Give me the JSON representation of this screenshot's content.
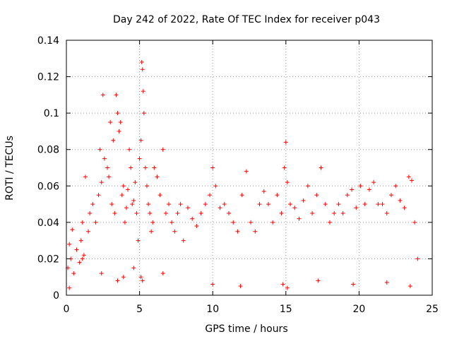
{
  "chart_data": {
    "type": "scatter",
    "title": "Day 242 of 2022, Rate Of TEC Index for receiver p043",
    "xlabel": "GPS time / hours",
    "ylabel": "ROTI / TECUs",
    "xlim": [
      0,
      25
    ],
    "ylim": [
      0,
      0.14
    ],
    "xticks": [
      0,
      5,
      10,
      15,
      20,
      25
    ],
    "yticks": [
      0,
      0.02,
      0.04,
      0.06,
      0.08,
      0.1,
      0.12,
      0.14
    ],
    "xtick_labels": [
      "0",
      "5",
      "10",
      "15",
      "20",
      "25"
    ],
    "ytick_labels": [
      "0",
      "0.02",
      "0.04",
      "0.06",
      "0.08",
      "0.1",
      "0.12",
      "0.14"
    ],
    "grid": true,
    "marker": "plus",
    "color": "#ff0000",
    "series": [
      {
        "name": "",
        "x": [
          0.1,
          0.2,
          0.3,
          0.4,
          0.5,
          0.7,
          0.9,
          1.0,
          1.1,
          1.2,
          1.3,
          1.5,
          1.6,
          1.8,
          2.0,
          2.2,
          2.3,
          2.4,
          2.5,
          2.6,
          2.8,
          2.9,
          3.0,
          3.1,
          3.2,
          3.3,
          3.4,
          3.5,
          3.6,
          3.7,
          3.8,
          3.9,
          4.0,
          4.1,
          4.2,
          4.3,
          4.4,
          4.5,
          4.6,
          4.7,
          4.8,
          4.9,
          5.0,
          5.1,
          5.15,
          5.2,
          5.25,
          5.3,
          5.4,
          5.5,
          5.6,
          5.7,
          5.8,
          5.9,
          6.0,
          6.2,
          6.4,
          6.6,
          6.8,
          7.0,
          7.2,
          7.4,
          7.6,
          7.8,
          8.0,
          8.3,
          8.6,
          8.9,
          9.2,
          9.5,
          9.8,
          10.0,
          10.2,
          10.5,
          10.8,
          11.1,
          11.4,
          11.7,
          12.0,
          12.3,
          12.6,
          12.9,
          13.2,
          13.5,
          13.8,
          14.1,
          14.4,
          14.7,
          14.9,
          15.0,
          15.1,
          15.3,
          15.6,
          15.9,
          16.2,
          16.5,
          16.8,
          17.1,
          17.4,
          17.7,
          18.0,
          18.3,
          18.6,
          18.9,
          19.2,
          19.5,
          19.8,
          20.1,
          20.4,
          20.7,
          21.0,
          21.3,
          21.6,
          21.9,
          22.2,
          22.5,
          22.8,
          23.1,
          23.4,
          23.6,
          23.8,
          24.0,
          0.2,
          1.1,
          2.4,
          3.5,
          3.9,
          4.6,
          5.1,
          5.2,
          6.6,
          10.0,
          11.9,
          14.8,
          15.1,
          17.2,
          19.6,
          21.9,
          23.5
        ],
        "y": [
          0.015,
          0.028,
          0.02,
          0.036,
          0.012,
          0.025,
          0.018,
          0.03,
          0.04,
          0.022,
          0.065,
          0.035,
          0.045,
          0.05,
          0.04,
          0.055,
          0.08,
          0.062,
          0.11,
          0.075,
          0.07,
          0.065,
          0.095,
          0.05,
          0.085,
          0.045,
          0.11,
          0.1,
          0.09,
          0.095,
          0.055,
          0.06,
          0.04,
          0.048,
          0.058,
          0.08,
          0.07,
          0.05,
          0.052,
          0.062,
          0.045,
          0.03,
          0.075,
          0.085,
          0.128,
          0.124,
          0.112,
          0.1,
          0.07,
          0.06,
          0.05,
          0.045,
          0.035,
          0.04,
          0.07,
          0.065,
          0.055,
          0.08,
          0.045,
          0.05,
          0.04,
          0.035,
          0.045,
          0.05,
          0.03,
          0.048,
          0.042,
          0.038,
          0.045,
          0.05,
          0.055,
          0.07,
          0.06,
          0.048,
          0.05,
          0.045,
          0.04,
          0.035,
          0.055,
          0.068,
          0.04,
          0.035,
          0.05,
          0.057,
          0.05,
          0.04,
          0.055,
          0.045,
          0.07,
          0.084,
          0.062,
          0.05,
          0.048,
          0.042,
          0.052,
          0.06,
          0.045,
          0.055,
          0.07,
          0.05,
          0.04,
          0.045,
          0.05,
          0.045,
          0.055,
          0.058,
          0.048,
          0.06,
          0.05,
          0.058,
          0.062,
          0.05,
          0.05,
          0.045,
          0.055,
          0.06,
          0.052,
          0.048,
          0.065,
          0.063,
          0.04,
          0.02,
          0.004,
          0.02,
          0.012,
          0.008,
          0.01,
          0.015,
          0.01,
          0.008,
          0.012,
          0.006,
          0.005,
          0.006,
          0.004,
          0.008,
          0.006,
          0.007,
          0.005
        ]
      }
    ]
  }
}
